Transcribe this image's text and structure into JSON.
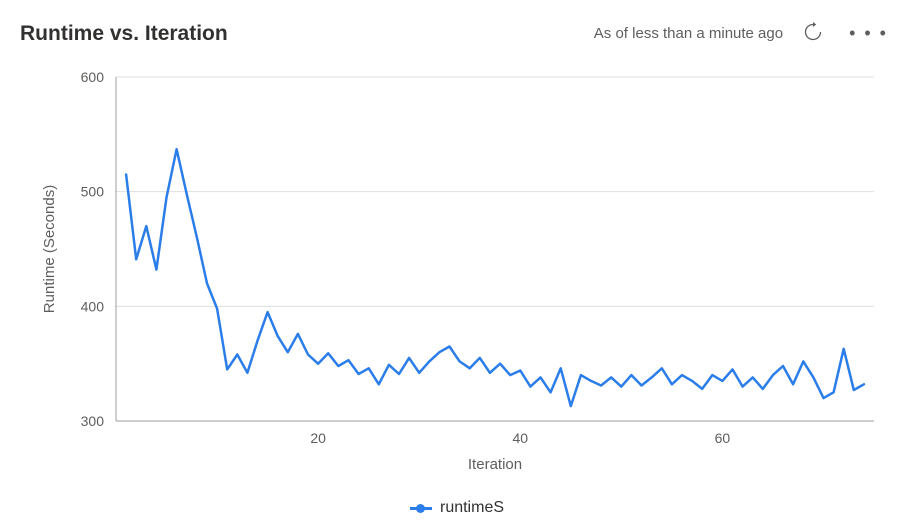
{
  "header": {
    "title": "Runtime vs. Iteration",
    "timestamp": "As of less than a minute ago"
  },
  "chart": {
    "type": "line",
    "xlabel": "Iteration",
    "ylabel": "Runtime (Seconds)",
    "xlim": [
      0,
      75
    ],
    "ylim": [
      300,
      600
    ],
    "xtick_step": 20,
    "ytick_step": 100,
    "line_color": "#2b7de9",
    "line_width": 2.5,
    "grid_color": "#e1dfdd",
    "axis_color": "#a19f9d",
    "text_color": "#605e5c",
    "background_color": "#ffffff",
    "label_fontsize": 15,
    "tick_fontsize": 14,
    "series": [
      {
        "name": "runtimeS",
        "color": "#2b7de9",
        "x": [
          1,
          2,
          3,
          4,
          5,
          6,
          7,
          8,
          9,
          10,
          11,
          12,
          13,
          14,
          15,
          16,
          17,
          18,
          19,
          20,
          21,
          22,
          23,
          24,
          25,
          26,
          27,
          28,
          29,
          30,
          31,
          32,
          33,
          34,
          35,
          36,
          37,
          38,
          39,
          40,
          41,
          42,
          43,
          44,
          45,
          46,
          47,
          48,
          49,
          50,
          51,
          52,
          53,
          54,
          55,
          56,
          57,
          58,
          59,
          60,
          61,
          62,
          63,
          64,
          65,
          66,
          67,
          68,
          69,
          70,
          71,
          72,
          73,
          74
        ],
        "y": [
          515,
          441,
          470,
          432,
          495,
          537,
          498,
          460,
          420,
          398,
          345,
          358,
          342,
          370,
          395,
          374,
          360,
          376,
          358,
          350,
          359,
          348,
          353,
          341,
          346,
          332,
          349,
          341,
          355,
          342,
          352,
          360,
          365,
          352,
          346,
          355,
          342,
          350,
          340,
          344,
          330,
          338,
          325,
          346,
          313,
          340,
          335,
          331,
          338,
          330,
          340,
          331,
          338,
          346,
          332,
          340,
          335,
          328,
          340,
          335,
          345,
          330,
          338,
          328,
          340,
          348,
          332,
          352,
          338,
          320,
          325,
          363,
          327,
          332
        ]
      }
    ],
    "legend": {
      "position": "bottom-center",
      "items": [
        {
          "label": "runtimeS",
          "color": "#2b7de9",
          "marker": "circle"
        }
      ]
    }
  }
}
